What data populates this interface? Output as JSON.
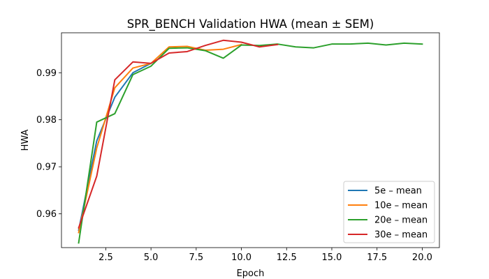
{
  "chart_data": {
    "type": "line",
    "title": "SPR_BENCH Validation HWA (mean ± SEM)",
    "xlabel": "Epoch",
    "ylabel": "HWA",
    "xlim": [
      0.05,
      20.95
    ],
    "ylim": [
      0.9528,
      0.9985
    ],
    "xticks": [
      2.5,
      5.0,
      7.5,
      10.0,
      12.5,
      15.0,
      17.5,
      20.0
    ],
    "xtick_labels": [
      "2.5",
      "5.0",
      "7.5",
      "10.0",
      "12.5",
      "15.0",
      "17.5",
      "20.0"
    ],
    "yticks": [
      0.96,
      0.97,
      0.98,
      0.99
    ],
    "ytick_labels": [
      "0.96",
      "0.97",
      "0.98",
      "0.99"
    ],
    "grid": false,
    "legend_position": "lower-right",
    "series": [
      {
        "name": "5e – mean",
        "color": "#1f77b4",
        "x": [
          1,
          2,
          3,
          4,
          5
        ],
        "y": [
          0.9565,
          0.9755,
          0.9848,
          0.99,
          0.992
        ]
      },
      {
        "name": "10e – mean",
        "color": "#ff7f0e",
        "x": [
          1,
          2,
          3,
          4,
          5,
          6,
          7,
          8,
          9,
          10
        ],
        "y": [
          0.956,
          0.974,
          0.9868,
          0.991,
          0.992,
          0.9955,
          0.9956,
          0.9948,
          0.995,
          0.996
        ]
      },
      {
        "name": "20e – mean",
        "color": "#2ca02c",
        "x": [
          1,
          2,
          3,
          4,
          5,
          6,
          7,
          8,
          9,
          10,
          11,
          12,
          13,
          14,
          15,
          16,
          17,
          18,
          19,
          20
        ],
        "y": [
          0.9538,
          0.9795,
          0.9813,
          0.9896,
          0.9914,
          0.9952,
          0.9953,
          0.9947,
          0.9931,
          0.9959,
          0.9958,
          0.9961,
          0.9955,
          0.9953,
          0.9961,
          0.9961,
          0.9963,
          0.9959,
          0.9963,
          0.9961
        ]
      },
      {
        "name": "30e – mean",
        "color": "#d62728",
        "x": [
          1,
          2,
          3,
          4,
          5,
          6,
          7,
          8,
          9,
          10,
          11,
          12
        ],
        "y": [
          0.957,
          0.968,
          0.9885,
          0.9923,
          0.992,
          0.9942,
          0.9945,
          0.9958,
          0.9969,
          0.9965,
          0.9955,
          0.996
        ]
      }
    ]
  }
}
